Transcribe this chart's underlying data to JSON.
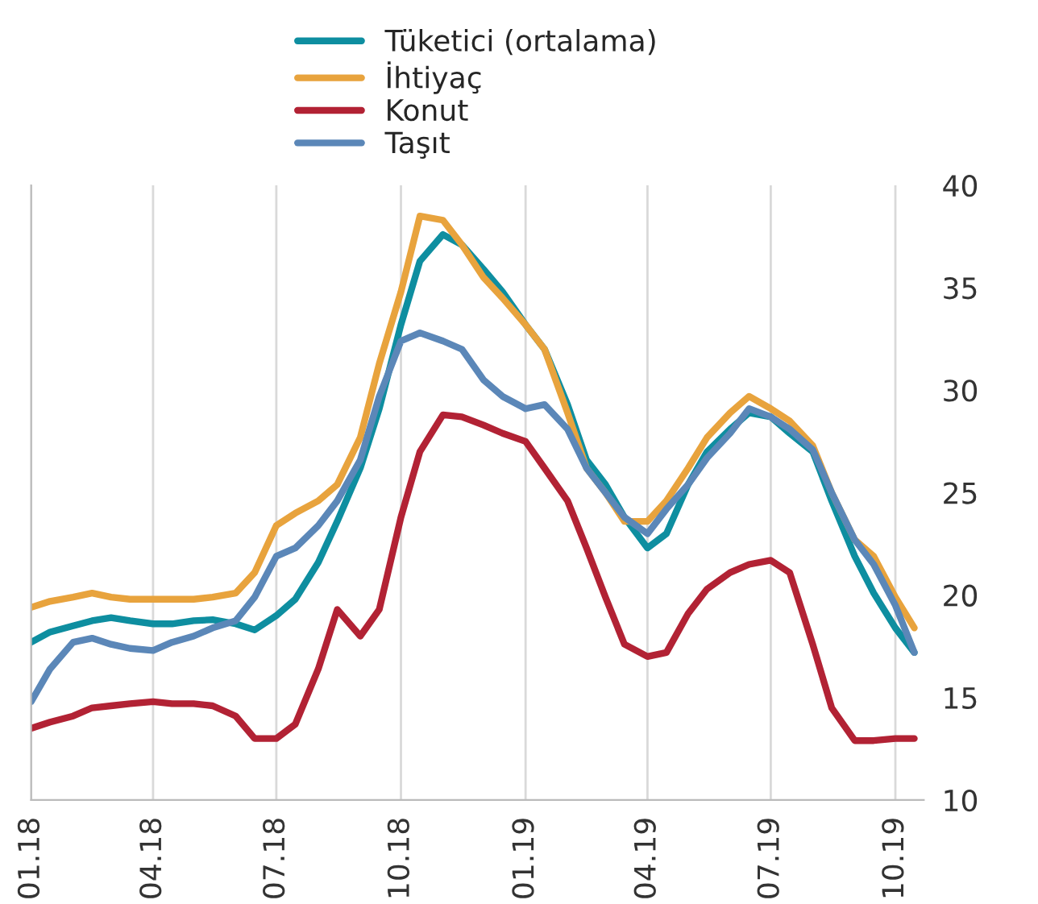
{
  "chart_data": {
    "type": "line",
    "legend": "top",
    "grid": "x",
    "line_style": "solid",
    "x": [
      "2018-01-01",
      "2018-01-15",
      "2018-02-01",
      "2018-02-15",
      "2018-03-01",
      "2018-03-15",
      "2018-04-01",
      "2018-04-15",
      "2018-05-01",
      "2018-05-15",
      "2018-06-01",
      "2018-06-15",
      "2018-07-01",
      "2018-07-15",
      "2018-08-01",
      "2018-08-15",
      "2018-09-01",
      "2018-09-15",
      "2018-10-01",
      "2018-10-15",
      "2018-11-01",
      "2018-11-15",
      "2018-12-01",
      "2018-12-15",
      "2019-01-01",
      "2019-01-15",
      "2019-02-01",
      "2019-02-15",
      "2019-03-01",
      "2019-03-15",
      "2019-04-01",
      "2019-04-15",
      "2019-05-01",
      "2019-05-15",
      "2019-06-01",
      "2019-06-15",
      "2019-07-01",
      "2019-07-15",
      "2019-08-01",
      "2019-08-15",
      "2019-09-01",
      "2019-09-15",
      "2019-10-01",
      "2019-10-15"
    ],
    "xlim": [
      "2018-01-01",
      "2019-10-22"
    ],
    "xticks": [
      {
        "value": "2018-01-01",
        "label": "01.18"
      },
      {
        "value": "2018-04-01",
        "label": "04.18"
      },
      {
        "value": "2018-07-01",
        "label": "07.18"
      },
      {
        "value": "2018-10-01",
        "label": "10.18"
      },
      {
        "value": "2019-01-01",
        "label": "01.19"
      },
      {
        "value": "2019-04-01",
        "label": "04.19"
      },
      {
        "value": "2019-07-01",
        "label": "07.19"
      },
      {
        "value": "2019-10-01",
        "label": "10.19"
      }
    ],
    "ylim": [
      10,
      40
    ],
    "yticks": [
      10,
      15,
      20,
      25,
      30,
      35,
      40
    ],
    "series": [
      {
        "name": "Tüketici (ortalama)",
        "color": "#0e8ea0",
        "values": [
          17.7,
          18.2,
          18.5,
          18.75,
          18.9,
          18.75,
          18.6,
          18.6,
          18.75,
          18.8,
          18.6,
          18.3,
          19.0,
          19.8,
          21.6,
          23.6,
          26.2,
          29.1,
          33.2,
          36.3,
          37.6,
          37.1,
          35.9,
          34.8,
          33.2,
          32.0,
          29.3,
          26.6,
          25.4,
          23.8,
          22.3,
          23.0,
          25.4,
          27.0,
          28.1,
          28.9,
          28.7,
          27.9,
          27.0,
          24.6,
          21.9,
          20.1,
          18.4,
          17.2
        ]
      },
      {
        "name": "İhtiyaç",
        "color": "#e8a33d",
        "values": [
          19.4,
          19.7,
          19.9,
          20.1,
          19.9,
          19.8,
          19.8,
          19.8,
          19.8,
          19.9,
          20.1,
          21.1,
          23.4,
          24.0,
          24.6,
          25.4,
          27.7,
          31.3,
          34.8,
          38.5,
          38.3,
          37.1,
          35.5,
          34.5,
          33.2,
          32.0,
          28.9,
          26.2,
          25.0,
          23.6,
          23.6,
          24.6,
          26.2,
          27.7,
          28.9,
          29.7,
          29.1,
          28.5,
          27.3,
          25.0,
          22.7,
          21.9,
          19.9,
          18.4
        ]
      },
      {
        "name": "Konut",
        "color": "#b22234",
        "values": [
          13.5,
          13.8,
          14.1,
          14.5,
          14.6,
          14.7,
          14.8,
          14.7,
          14.7,
          14.6,
          14.1,
          13.0,
          13.0,
          13.7,
          16.4,
          19.3,
          18.0,
          19.3,
          23.8,
          27.0,
          28.8,
          28.7,
          28.3,
          27.9,
          27.5,
          26.2,
          24.6,
          22.3,
          19.9,
          17.6,
          17.0,
          17.2,
          19.1,
          20.3,
          21.1,
          21.5,
          21.7,
          21.1,
          17.6,
          14.5,
          12.9,
          12.9,
          13.0,
          13.0
        ]
      },
      {
        "name": "Taşıt",
        "color": "#5b87b8",
        "values": [
          14.8,
          16.4,
          17.7,
          17.9,
          17.6,
          17.4,
          17.3,
          17.7,
          18.0,
          18.4,
          18.75,
          19.9,
          21.9,
          22.3,
          23.4,
          24.6,
          26.6,
          29.7,
          32.4,
          32.8,
          32.4,
          32.0,
          30.5,
          29.7,
          29.1,
          29.3,
          28.1,
          26.2,
          25.0,
          23.8,
          23.0,
          24.2,
          25.4,
          26.7,
          27.9,
          29.1,
          28.7,
          28.1,
          27.1,
          25.0,
          22.7,
          21.5,
          19.5,
          17.2
        ]
      }
    ]
  }
}
